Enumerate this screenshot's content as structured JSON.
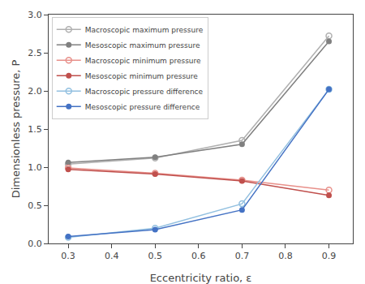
{
  "chart_data": {
    "type": "line",
    "xlabel": "Eccentricity ratio, ε",
    "ylabel": "Dimensionless pressure, P",
    "x": [
      0.3,
      0.5,
      0.7,
      0.9
    ],
    "series": [
      {
        "name": "Macroscopic maximum pressure",
        "color": "#b0b0b0",
        "marker": "circle-open",
        "values": [
          1.04,
          1.12,
          1.35,
          2.72
        ]
      },
      {
        "name": "Mesoscopic maximum pressure",
        "color": "#808080",
        "marker": "circle",
        "values": [
          1.06,
          1.13,
          1.3,
          2.65
        ]
      },
      {
        "name": "Macroscopic minimum pressure",
        "color": "#e8908a",
        "marker": "circle-open",
        "values": [
          0.99,
          0.92,
          0.83,
          0.7
        ]
      },
      {
        "name": "Mesoscopic minimum pressure",
        "color": "#c0504d",
        "marker": "circle",
        "values": [
          0.97,
          0.91,
          0.82,
          0.63
        ]
      },
      {
        "name": "Macroscopic pressure difference",
        "color": "#92c0e0",
        "marker": "circle-open",
        "values": [
          0.08,
          0.2,
          0.52,
          2.02
        ]
      },
      {
        "name": "Mesoscopic pressure difference",
        "color": "#4472c4",
        "marker": "circle",
        "values": [
          0.09,
          0.18,
          0.44,
          2.02
        ]
      }
    ],
    "xlim": [
      0.255,
      0.955
    ],
    "ylim": [
      0.0,
      3.0
    ],
    "xticks": [
      0.3,
      0.4,
      0.5,
      0.6,
      0.7,
      0.8,
      0.9
    ],
    "yticks": [
      {
        "value": 0.0,
        "label": "0.0"
      },
      0.5,
      {
        "value": 1.0,
        "label": "1.0"
      },
      1.5,
      {
        "value": 2.0,
        "label": "2.0"
      },
      2.5,
      {
        "value": 3.0,
        "label": "3.0"
      }
    ],
    "legend": "upper left",
    "grid": false
  }
}
